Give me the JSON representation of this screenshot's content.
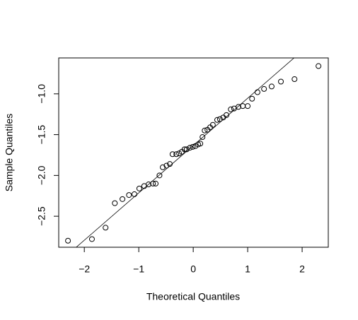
{
  "chart_data": {
    "type": "qq",
    "xlabel": "Theoretical Quantiles",
    "ylabel": "Sample Quantiles",
    "x": [
      -2.3,
      -1.86,
      -1.61,
      -1.44,
      -1.3,
      -1.18,
      -1.08,
      -0.99,
      -0.9,
      -0.82,
      -0.74,
      -0.69,
      -0.62,
      -0.56,
      -0.49,
      -0.43,
      -0.38,
      -0.31,
      -0.26,
      -0.21,
      -0.16,
      -0.12,
      -0.06,
      -0.01,
      0.04,
      0.09,
      0.13,
      0.17,
      0.21,
      0.26,
      0.31,
      0.36,
      0.44,
      0.49,
      0.55,
      0.61,
      0.69,
      0.75,
      0.83,
      0.91,
      1.0,
      1.08,
      1.18,
      1.3,
      1.44,
      1.61,
      1.86,
      2.3
    ],
    "values": [
      -2.8,
      -2.78,
      -2.64,
      -2.34,
      -2.29,
      -2.24,
      -2.23,
      -2.16,
      -2.13,
      -2.11,
      -2.1,
      -2.1,
      -2.0,
      -1.9,
      -1.88,
      -1.86,
      -1.74,
      -1.74,
      -1.73,
      -1.71,
      -1.68,
      -1.68,
      -1.66,
      -1.65,
      -1.64,
      -1.62,
      -1.61,
      -1.53,
      -1.45,
      -1.44,
      -1.41,
      -1.38,
      -1.32,
      -1.31,
      -1.29,
      -1.26,
      -1.19,
      -1.18,
      -1.16,
      -1.15,
      -1.15,
      -1.06,
      -0.98,
      -0.94,
      -0.91,
      -0.85,
      -0.82,
      -0.66
    ],
    "color": "#000000",
    "xlim": [
      -2.47,
      2.48
    ],
    "ylim": [
      -2.88,
      -0.56
    ],
    "xticks": [
      {
        "value": -2,
        "label": "−2"
      },
      {
        "value": -1,
        "label": "−1"
      },
      0,
      1,
      2
    ],
    "yticks": [
      {
        "value": -2.5,
        "label": "−2.5"
      },
      {
        "value": -2,
        "label": "−2.0"
      },
      {
        "value": -1.5,
        "label": "−1.5"
      },
      {
        "value": -1,
        "label": "−1.0"
      }
    ],
    "reference_line": true
  }
}
